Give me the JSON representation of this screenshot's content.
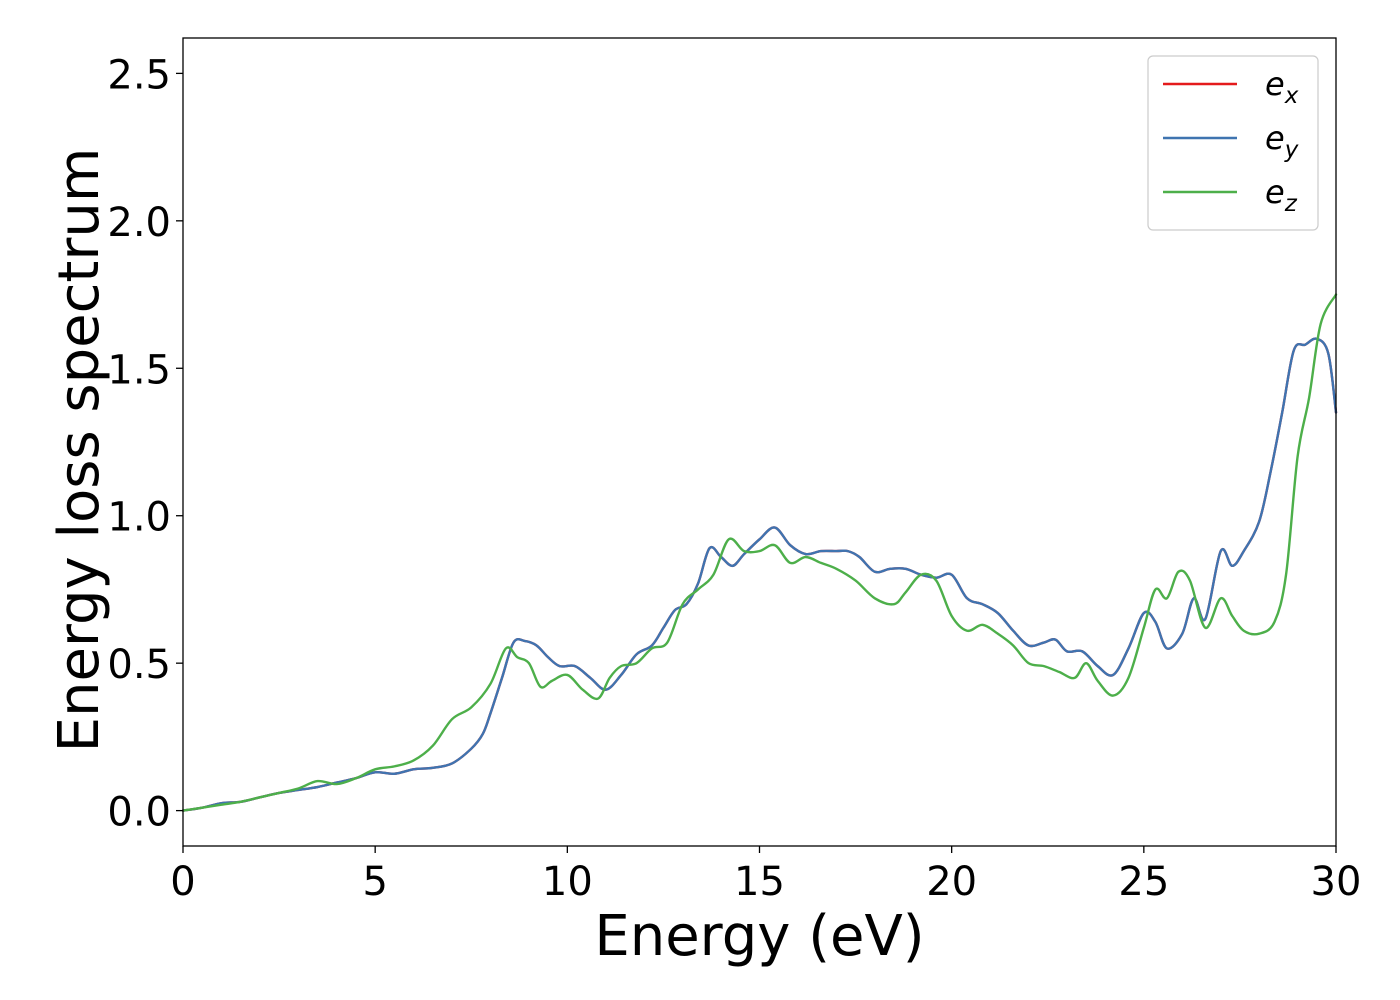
{
  "chart_data": {
    "type": "line",
    "xlabel": "Energy (eV)",
    "ylabel": "Energy loss spectrum",
    "xlim": [
      0,
      30
    ],
    "ylim": [
      -0.12,
      2.62
    ],
    "xticks": [
      0,
      5,
      10,
      15,
      20,
      25,
      30
    ],
    "xtick_labels": [
      "0",
      "5",
      "10",
      "15",
      "20",
      "25",
      "30"
    ],
    "yticks": [
      0.0,
      0.5,
      1.0,
      1.5,
      2.0,
      2.5
    ],
    "ytick_labels": [
      "0.0",
      "0.5",
      "1.0",
      "1.5",
      "2.0",
      "2.5"
    ],
    "grid": false,
    "legend_position": "top-right",
    "series": [
      {
        "name": "e",
        "subscript": "x",
        "color": "#e41a1c",
        "x": [
          0,
          0.5,
          1,
          1.5,
          2,
          2.5,
          3,
          3.5,
          4,
          4.5,
          5,
          5.5,
          6,
          6.5,
          7,
          7.5,
          7.8,
          8,
          8.3,
          8.6,
          8.9,
          9.2,
          9.5,
          9.8,
          10.2,
          10.6,
          11,
          11.4,
          11.8,
          12.2,
          12.5,
          12.8,
          13.1,
          13.4,
          13.7,
          14,
          14.3,
          14.6,
          15,
          15.4,
          15.8,
          16.2,
          16.6,
          17,
          17.3,
          17.6,
          18,
          18.4,
          18.8,
          19.2,
          19.6,
          20,
          20.4,
          20.8,
          21.2,
          21.6,
          22,
          22.4,
          22.7,
          23,
          23.4,
          23.8,
          24.2,
          24.6,
          25,
          25.3,
          25.6,
          26,
          26.3,
          26.6,
          27,
          27.3,
          27.6,
          28,
          28.3,
          28.6,
          28.9,
          29.2,
          29.5,
          29.8,
          30
        ],
        "y": [
          0,
          0.01,
          0.025,
          0.03,
          0.045,
          0.06,
          0.07,
          0.08,
          0.095,
          0.11,
          0.13,
          0.125,
          0.14,
          0.145,
          0.16,
          0.21,
          0.26,
          0.33,
          0.45,
          0.57,
          0.575,
          0.56,
          0.52,
          0.49,
          0.49,
          0.45,
          0.41,
          0.46,
          0.53,
          0.56,
          0.62,
          0.68,
          0.7,
          0.77,
          0.89,
          0.86,
          0.83,
          0.87,
          0.92,
          0.96,
          0.9,
          0.87,
          0.88,
          0.88,
          0.88,
          0.86,
          0.81,
          0.82,
          0.82,
          0.8,
          0.79,
          0.8,
          0.72,
          0.7,
          0.67,
          0.61,
          0.56,
          0.57,
          0.58,
          0.54,
          0.54,
          0.49,
          0.46,
          0.55,
          0.67,
          0.64,
          0.55,
          0.6,
          0.72,
          0.65,
          0.88,
          0.83,
          0.88,
          0.98,
          1.15,
          1.35,
          1.56,
          1.58,
          1.6,
          1.55,
          1.35
        ]
      },
      {
        "name": "e",
        "subscript": "y",
        "color": "#3f74b0",
        "x": [
          0,
          0.5,
          1,
          1.5,
          2,
          2.5,
          3,
          3.5,
          4,
          4.5,
          5,
          5.5,
          6,
          6.5,
          7,
          7.5,
          7.8,
          8,
          8.3,
          8.6,
          8.9,
          9.2,
          9.5,
          9.8,
          10.2,
          10.6,
          11,
          11.4,
          11.8,
          12.2,
          12.5,
          12.8,
          13.1,
          13.4,
          13.7,
          14,
          14.3,
          14.6,
          15,
          15.4,
          15.8,
          16.2,
          16.6,
          17,
          17.3,
          17.6,
          18,
          18.4,
          18.8,
          19.2,
          19.6,
          20,
          20.4,
          20.8,
          21.2,
          21.6,
          22,
          22.4,
          22.7,
          23,
          23.4,
          23.8,
          24.2,
          24.6,
          25,
          25.3,
          25.6,
          26,
          26.3,
          26.6,
          27,
          27.3,
          27.6,
          28,
          28.3,
          28.6,
          28.9,
          29.2,
          29.5,
          29.8,
          30
        ],
        "y": [
          0,
          0.01,
          0.025,
          0.03,
          0.045,
          0.06,
          0.07,
          0.08,
          0.095,
          0.11,
          0.13,
          0.125,
          0.14,
          0.145,
          0.16,
          0.21,
          0.26,
          0.33,
          0.45,
          0.57,
          0.575,
          0.56,
          0.52,
          0.49,
          0.49,
          0.45,
          0.41,
          0.46,
          0.53,
          0.56,
          0.62,
          0.68,
          0.7,
          0.77,
          0.89,
          0.86,
          0.83,
          0.87,
          0.92,
          0.96,
          0.9,
          0.87,
          0.88,
          0.88,
          0.88,
          0.86,
          0.81,
          0.82,
          0.82,
          0.8,
          0.79,
          0.8,
          0.72,
          0.7,
          0.67,
          0.61,
          0.56,
          0.57,
          0.58,
          0.54,
          0.54,
          0.49,
          0.46,
          0.55,
          0.67,
          0.64,
          0.55,
          0.6,
          0.72,
          0.65,
          0.88,
          0.83,
          0.88,
          0.98,
          1.15,
          1.35,
          1.56,
          1.58,
          1.6,
          1.55,
          1.35
        ]
      },
      {
        "name": "e",
        "subscript": "z",
        "color": "#4daf4a",
        "x": [
          0,
          0.5,
          1,
          1.5,
          2,
          2.5,
          3,
          3.5,
          4,
          4.5,
          5,
          5.5,
          6,
          6.5,
          7,
          7.5,
          8,
          8.4,
          8.7,
          9,
          9.3,
          9.6,
          10,
          10.4,
          10.8,
          11.1,
          11.4,
          11.8,
          12.2,
          12.6,
          13,
          13.4,
          13.8,
          14.2,
          14.6,
          15,
          15.4,
          15.8,
          16.2,
          16.6,
          17,
          17.5,
          18,
          18.5,
          18.8,
          19.2,
          19.6,
          20,
          20.4,
          20.8,
          21.2,
          21.6,
          22,
          22.4,
          22.8,
          23.2,
          23.5,
          23.8,
          24.2,
          24.6,
          25,
          25.3,
          25.6,
          25.9,
          26.2,
          26.6,
          27,
          27.3,
          27.6,
          28,
          28.4,
          28.7,
          29,
          29.3,
          29.6,
          30
        ],
        "y": [
          0,
          0.01,
          0.02,
          0.03,
          0.045,
          0.06,
          0.075,
          0.1,
          0.09,
          0.11,
          0.14,
          0.15,
          0.17,
          0.22,
          0.31,
          0.35,
          0.43,
          0.55,
          0.52,
          0.5,
          0.42,
          0.44,
          0.46,
          0.41,
          0.38,
          0.45,
          0.49,
          0.5,
          0.55,
          0.57,
          0.7,
          0.75,
          0.8,
          0.92,
          0.88,
          0.88,
          0.9,
          0.84,
          0.86,
          0.84,
          0.82,
          0.78,
          0.72,
          0.7,
          0.74,
          0.8,
          0.78,
          0.66,
          0.61,
          0.63,
          0.6,
          0.56,
          0.5,
          0.49,
          0.47,
          0.45,
          0.5,
          0.44,
          0.39,
          0.45,
          0.62,
          0.75,
          0.72,
          0.81,
          0.78,
          0.62,
          0.72,
          0.66,
          0.61,
          0.6,
          0.64,
          0.8,
          1.2,
          1.4,
          1.65,
          1.75
        ]
      }
    ]
  }
}
